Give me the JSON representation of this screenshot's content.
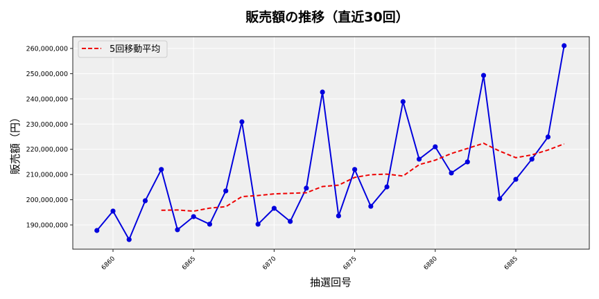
{
  "chart_data": {
    "type": "line",
    "title": "販売額の推移（直近30回）",
    "xlabel": "抽選回号",
    "ylabel": "販売額（円）",
    "x": [
      6859,
      6860,
      6861,
      6862,
      6863,
      6864,
      6865,
      6866,
      6867,
      6868,
      6869,
      6870,
      6871,
      6872,
      6873,
      6874,
      6875,
      6876,
      6877,
      6878,
      6879,
      6880,
      6881,
      6882,
      6883,
      6884,
      6885,
      6886,
      6887,
      6888
    ],
    "series": [
      {
        "name": "販売額",
        "color": "#0000dd",
        "style": "solid-with-markers",
        "values": [
          187800000,
          195500000,
          184200000,
          199600000,
          212000000,
          188100000,
          193300000,
          190300000,
          203500000,
          230900000,
          190300000,
          196600000,
          191400000,
          204600000,
          242700000,
          193600000,
          212000000,
          197400000,
          205100000,
          238900000,
          216100000,
          221000000,
          210600000,
          215000000,
          249300000,
          200400000,
          208100000,
          216100000,
          224900000,
          261100000
        ]
      },
      {
        "name": "5回移動平均",
        "color": "#ee0000",
        "style": "dashed",
        "values": [
          null,
          null,
          null,
          null,
          195820000,
          195940000,
          195460000,
          196680000,
          197240000,
          201220000,
          201660000,
          202320000,
          202540000,
          202760000,
          205240000,
          205780000,
          208860000,
          209940000,
          210160000,
          209400000,
          213900000,
          215700000,
          218340000,
          220320000,
          222400000,
          219260000,
          216680000,
          217780000,
          219740000,
          222150000
        ]
      }
    ],
    "ylim": [
      180000000,
      264000000
    ],
    "xlim": [
      6858,
      6889.5
    ],
    "yticks": [
      190000000,
      200000000,
      210000000,
      220000000,
      230000000,
      240000000,
      250000000,
      260000000
    ],
    "ytick_labels": [
      "190,000,000",
      "200,000,000",
      "210,000,000",
      "220,000,000",
      "230,000,000",
      "240,000,000",
      "250,000,000",
      "260,000,000"
    ],
    "xticks": [
      6860,
      6865,
      6870,
      6875,
      6880,
      6885
    ],
    "xtick_labels": [
      "6860",
      "6865",
      "6870",
      "6875",
      "6880",
      "6885"
    ],
    "grid": true,
    "legend": {
      "position": "upper left",
      "entries": [
        "5回移動平均"
      ]
    },
    "colors": {
      "plot_background": "#efefef",
      "grid": "#ffffff"
    }
  }
}
